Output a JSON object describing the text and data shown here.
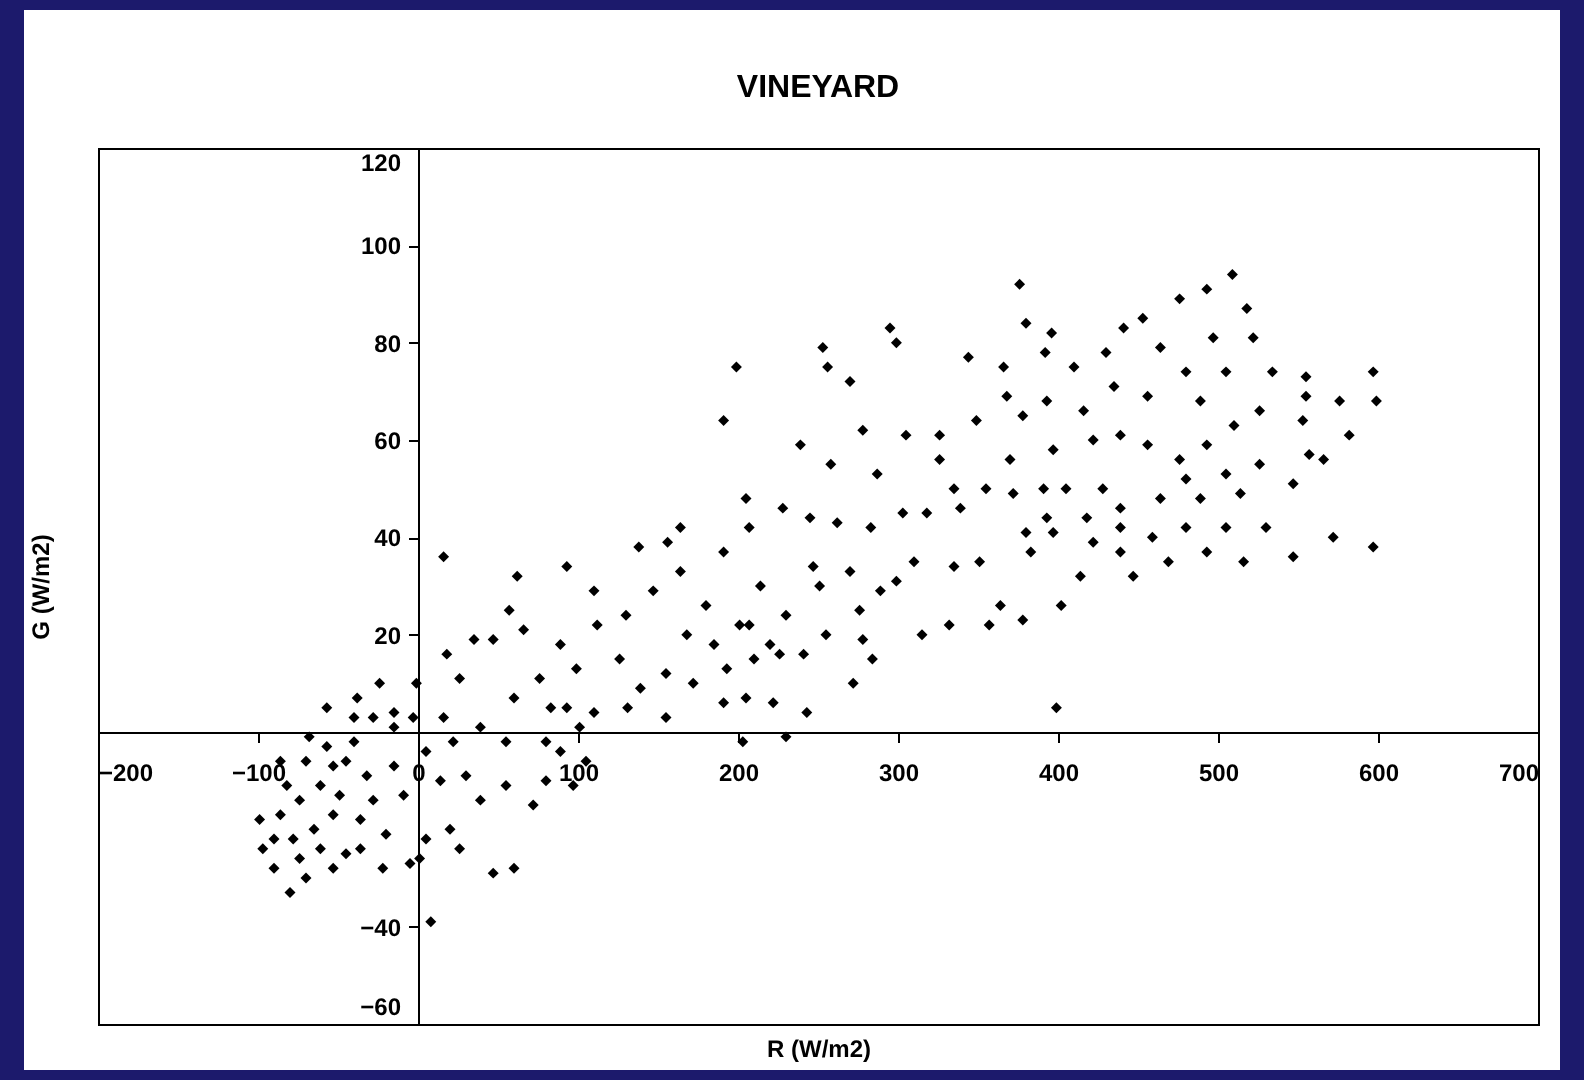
{
  "chart_data": {
    "type": "scatter",
    "title": "VINEYARD",
    "xlabel": "R (W/m2)",
    "ylabel": "G (W/m2)",
    "xlim": [
      -200,
      700
    ],
    "xticks": [
      -200,
      -100,
      0,
      100,
      200,
      300,
      400,
      500,
      600,
      700
    ],
    "ylim": [
      -60,
      120
    ],
    "yticks": [
      -60,
      -40,
      20,
      40,
      60,
      80,
      100,
      120
    ],
    "marker": "diamond",
    "x": [
      509,
      376,
      380,
      396,
      295,
      299,
      253,
      256,
      270,
      199,
      344,
      366,
      392,
      430,
      441,
      453,
      476,
      493,
      518,
      597,
      599,
      576,
      582,
      555,
      555,
      553,
      557,
      566,
      547,
      547,
      572,
      597,
      516,
      493,
      469,
      447,
      414,
      402,
      399,
      378,
      357,
      364,
      332,
      315,
      272,
      243,
      222,
      205,
      193,
      210,
      226,
      241,
      255,
      278,
      284,
      251,
      270,
      289,
      299,
      310,
      335,
      351,
      383,
      397,
      422,
      439,
      459,
      480,
      505,
      530,
      514,
      489,
      464,
      439,
      418,
      428,
      405,
      391,
      372,
      355,
      339,
      318,
      303,
      283,
      262,
      245,
      228,
      207,
      205,
      191,
      191,
      239,
      258,
      278,
      287,
      305,
      326,
      349,
      326,
      335,
      370,
      378,
      368,
      393,
      410,
      416,
      435,
      456,
      464,
      480,
      489,
      505,
      497,
      522,
      534,
      526,
      510,
      493,
      476,
      456,
      439,
      422,
      397,
      526,
      505,
      480,
      439,
      393,
      380,
      276,
      230,
      201,
      214,
      247,
      16,
      62,
      93,
      110,
      57,
      35,
      47,
      18,
      26,
      -1,
      60,
      66,
      89,
      76,
      83,
      112,
      99,
      130,
      138,
      156,
      164,
      147,
      126,
      139,
      131,
      155,
      168,
      180,
      185,
      172,
      191,
      155,
      203,
      230,
      207,
      220,
      164,
      93,
      8,
      47,
      60,
      -24,
      -38,
      -57,
      -3,
      -15,
      -28,
      22,
      39,
      55,
      80,
      89,
      101,
      110,
      80,
      97,
      105,
      55,
      72,
      39,
      30,
      14,
      20,
      26,
      5,
      5,
      -5,
      -9,
      -20,
      -22,
      -36,
      -32,
      -45,
      -68,
      -86,
      -99,
      -97,
      -90,
      -80,
      -70,
      -53,
      -45,
      -78,
      -65,
      -53,
      -74,
      -61,
      -49,
      -82,
      -90,
      -86,
      -61,
      -74,
      -36,
      -28,
      -15,
      -53,
      -70,
      -57,
      -40,
      -40,
      -15,
      1,
      16
    ],
    "series": [
      {
        "color": "#000000",
        "values": [
          94,
          92,
          84,
          82,
          83,
          80,
          79,
          75,
          72,
          75,
          77,
          75,
          78,
          78,
          83,
          85,
          89,
          91,
          87,
          74,
          68,
          68,
          61,
          73,
          69,
          64,
          57,
          56,
          51,
          36,
          40,
          38,
          35,
          37,
          35,
          32,
          32,
          26,
          5,
          23,
          22,
          26,
          22,
          20,
          10,
          4,
          6,
          7,
          13,
          15,
          16,
          16,
          20,
          19,
          15,
          30,
          33,
          29,
          31,
          35,
          34,
          35,
          37,
          41,
          39,
          37,
          40,
          42,
          42,
          42,
          49,
          48,
          48,
          46,
          44,
          50,
          50,
          50,
          49,
          50,
          46,
          45,
          45,
          42,
          43,
          44,
          46,
          42,
          48,
          37,
          64,
          59,
          55,
          62,
          53,
          61,
          61,
          64,
          56,
          50,
          56,
          65,
          69,
          68,
          75,
          66,
          71,
          69,
          79,
          74,
          68,
          74,
          81,
          81,
          74,
          66,
          63,
          59,
          56,
          59,
          61,
          60,
          58,
          55,
          53,
          52,
          42,
          44,
          41,
          25,
          24,
          22,
          30,
          34,
          36,
          32,
          34,
          29,
          25,
          19,
          19,
          16,
          11,
          10,
          7,
          21,
          18,
          11,
          5,
          22,
          13,
          24,
          38,
          39,
          42,
          29,
          15,
          9,
          5,
          12,
          20,
          26,
          18,
          10,
          6,
          3,
          -2,
          -1,
          22,
          18,
          33,
          5,
          -39,
          -29,
          -28,
          10,
          7,
          5,
          3,
          1,
          3,
          -2,
          1,
          -2,
          -2,
          -4,
          1,
          4,
          -10,
          -11,
          -6,
          -11,
          -15,
          -14,
          -9,
          -10,
          -20,
          -24,
          -22,
          -4,
          -27,
          -13,
          -21,
          -28,
          -18,
          -9,
          -6,
          -1,
          -6,
          -18,
          -24,
          -28,
          -33,
          -30,
          -28,
          -25,
          -22,
          -20,
          -17,
          -14,
          -11,
          -13,
          -11,
          -22,
          -17,
          -24,
          -26,
          -24,
          -14,
          -7,
          -7,
          -6,
          -3,
          -2,
          3,
          4,
          -26,
          3
        ]
      }
    ]
  }
}
